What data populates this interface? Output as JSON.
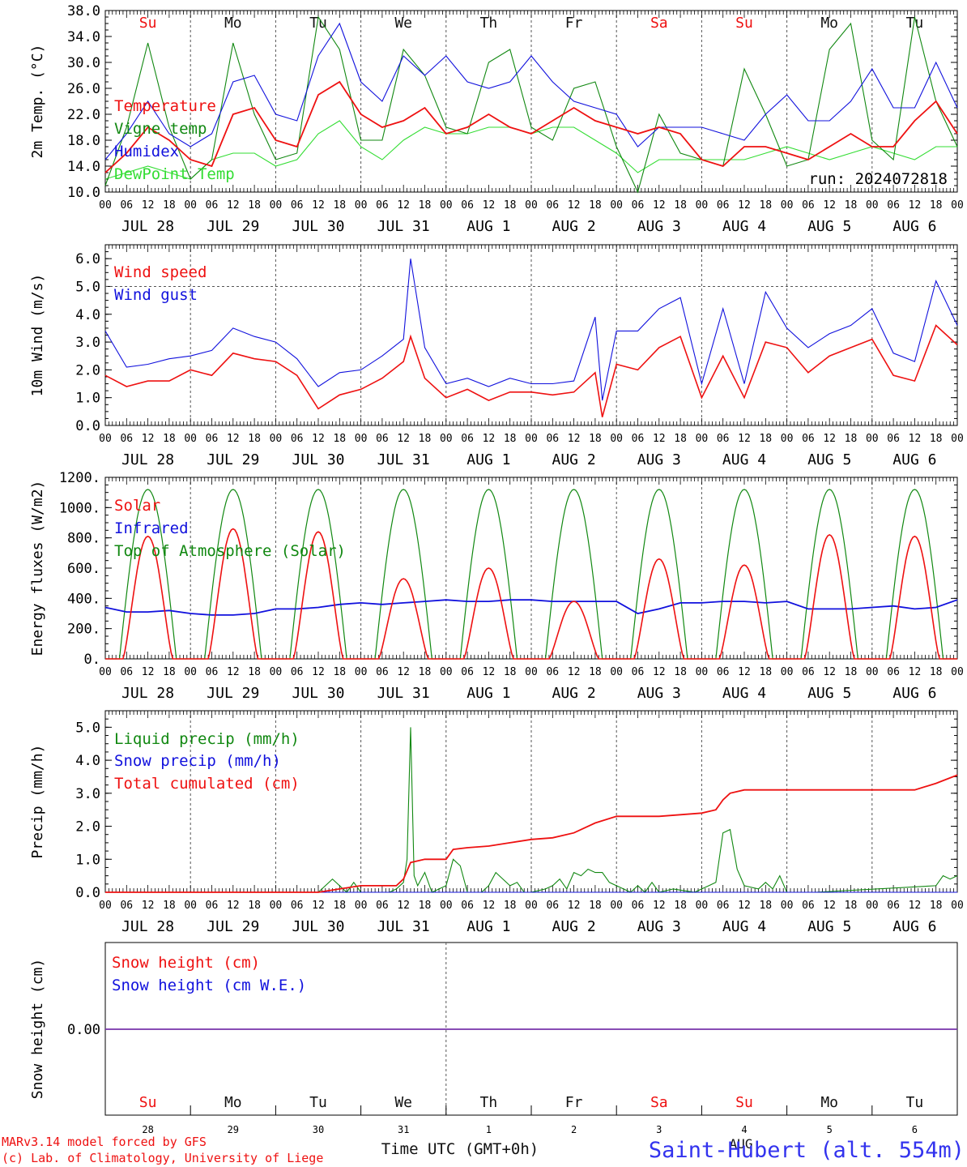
{
  "footer": {
    "credit1": "MARv3.14 model forced by GFS",
    "credit2": "(c) Lab. of Climatology, University of Liege",
    "xlabel": "Time UTC (GMT+0h)",
    "station": "Saint-Hubert (alt. 554m)",
    "month": "AUG"
  },
  "colors": {
    "red": "#ee1111",
    "green": "#118811",
    "blue": "#1111dd",
    "lightgreen": "#33dd33",
    "purple": "#7733aa",
    "weekend": "#ee1111",
    "weekday": "#111111"
  },
  "day_labels": [
    "JUL 28",
    "JUL 29",
    "JUL 30",
    "JUL 31",
    "AUG  1",
    "AUG  2",
    "AUG  3",
    "AUG  4",
    "AUG  5",
    "AUG  6"
  ],
  "hour_labels": [
    "00",
    "06",
    "12",
    "18"
  ],
  "weekdays": [
    "Su",
    "Mo",
    "Tu",
    "We",
    "Th",
    "Fr",
    "Sa",
    "Su",
    "Mo",
    "Tu"
  ],
  "weekend_flags": [
    true,
    false,
    false,
    false,
    false,
    false,
    true,
    true,
    false,
    false
  ],
  "bottom_day_numbers": [
    "28",
    "29",
    "30",
    "31",
    "1",
    "2",
    "3",
    "4",
    "5",
    "6"
  ],
  "chart_data": [
    {
      "type": "line",
      "ylabel": "2m Temp. (°C)",
      "ylim": [
        10,
        38
      ],
      "yticks": [
        10.0,
        14.0,
        18.0,
        22.0,
        26.0,
        30.0,
        34.0,
        38.0
      ],
      "ytick_labels": [
        "10.0",
        "14.0",
        "18.0",
        "22.0",
        "26.0",
        "30.0",
        "34.0",
        "38.0"
      ],
      "run_label": "run: 2024072818",
      "x_unit": "hours since JUL 28 00 UTC",
      "xlim": [
        0,
        240
      ],
      "series": [
        {
          "name": "Temperature",
          "color": "#ee1111",
          "x": [
            0,
            6,
            12,
            18,
            24,
            30,
            36,
            42,
            48,
            54,
            60,
            66,
            72,
            78,
            84,
            90,
            96,
            102,
            108,
            114,
            120,
            126,
            132,
            138,
            144,
            150,
            156,
            162,
            168,
            174,
            180,
            186,
            192,
            198,
            204,
            210,
            216,
            222,
            228,
            234,
            240
          ],
          "y": [
            13,
            16,
            20,
            18,
            15,
            14,
            22,
            23,
            18,
            17,
            25,
            27,
            22,
            20,
            21,
            23,
            19,
            20,
            22,
            20,
            19,
            21,
            23,
            21,
            20,
            19,
            20,
            19,
            15,
            14,
            17,
            17,
            16,
            15,
            17,
            19,
            17,
            17,
            21,
            24,
            19
          ]
        },
        {
          "name": "Vigne temp",
          "color": "#118811",
          "x": [
            0,
            6,
            12,
            18,
            24,
            30,
            36,
            42,
            48,
            54,
            60,
            66,
            72,
            78,
            84,
            90,
            96,
            102,
            108,
            114,
            120,
            126,
            132,
            138,
            144,
            150,
            156,
            162,
            168,
            174,
            180,
            186,
            192,
            198,
            204,
            210,
            216,
            222,
            228,
            234,
            240
          ],
          "y": [
            11,
            20,
            33,
            20,
            12,
            15,
            33,
            22,
            15,
            16,
            37,
            32,
            18,
            18,
            32,
            28,
            20,
            19,
            30,
            32,
            20,
            18,
            26,
            27,
            17,
            10,
            22,
            16,
            15,
            14,
            29,
            22,
            14,
            15,
            32,
            36,
            18,
            15,
            37,
            24,
            17
          ]
        },
        {
          "name": "Humidex",
          "color": "#1111dd",
          "x": [
            0,
            6,
            12,
            18,
            24,
            30,
            36,
            42,
            48,
            54,
            60,
            66,
            72,
            78,
            84,
            90,
            96,
            102,
            108,
            114,
            120,
            126,
            132,
            138,
            144,
            150,
            156,
            162,
            168,
            174,
            180,
            186,
            192,
            198,
            204,
            210,
            216,
            222,
            228,
            234,
            240
          ],
          "y": [
            15,
            19,
            24,
            19,
            17,
            19,
            27,
            28,
            22,
            21,
            31,
            36,
            27,
            24,
            31,
            28,
            31,
            27,
            26,
            27,
            31,
            27,
            24,
            23,
            22,
            17,
            20,
            20,
            20,
            19,
            18,
            22,
            25,
            21,
            21,
            24,
            29,
            23,
            23,
            30,
            23
          ]
        },
        {
          "name": "DewPoint Temp",
          "color": "#33dd33",
          "x": [
            0,
            6,
            12,
            18,
            24,
            30,
            36,
            42,
            48,
            54,
            60,
            66,
            72,
            78,
            84,
            90,
            96,
            102,
            108,
            114,
            120,
            126,
            132,
            138,
            144,
            150,
            156,
            162,
            168,
            174,
            180,
            186,
            192,
            198,
            204,
            210,
            216,
            222,
            228,
            234,
            240
          ],
          "y": [
            12,
            13,
            14,
            13,
            12,
            15,
            16,
            16,
            14,
            15,
            19,
            21,
            17,
            15,
            18,
            20,
            19,
            19,
            20,
            20,
            19,
            20,
            20,
            18,
            16,
            13,
            15,
            15,
            15,
            15,
            15,
            16,
            17,
            16,
            15,
            16,
            17,
            16,
            15,
            17,
            17
          ]
        }
      ]
    },
    {
      "type": "line",
      "ylabel": "10m Wind (m/s)",
      "ylim": [
        0,
        6.5
      ],
      "yticks": [
        0,
        1,
        2,
        3,
        4,
        5,
        6
      ],
      "ytick_labels": [
        "0.0",
        "1.0",
        "2.0",
        "3.0",
        "4.0",
        "5.0",
        "6.0"
      ],
      "reference_line": 5.0,
      "xlim": [
        0,
        240
      ],
      "series": [
        {
          "name": "Wind speed",
          "color": "#ee1111",
          "x": [
            0,
            6,
            12,
            18,
            24,
            30,
            36,
            42,
            48,
            54,
            60,
            66,
            72,
            78,
            84,
            86,
            90,
            96,
            102,
            108,
            114,
            120,
            126,
            132,
            138,
            140,
            144,
            150,
            156,
            162,
            168,
            174,
            180,
            186,
            192,
            198,
            204,
            210,
            216,
            222,
            228,
            234,
            240
          ],
          "y": [
            1.8,
            1.4,
            1.6,
            1.6,
            2.0,
            1.8,
            2.6,
            2.4,
            2.3,
            1.8,
            0.6,
            1.1,
            1.3,
            1.7,
            2.3,
            3.2,
            1.7,
            1.0,
            1.3,
            0.9,
            1.2,
            1.2,
            1.1,
            1.2,
            1.9,
            0.3,
            2.2,
            2.0,
            2.8,
            3.2,
            1.0,
            2.5,
            1.0,
            3.0,
            2.8,
            1.9,
            2.5,
            2.8,
            3.1,
            1.8,
            1.6,
            3.6,
            2.9
          ]
        },
        {
          "name": "Wind gust",
          "color": "#1111dd",
          "x": [
            0,
            6,
            12,
            18,
            24,
            30,
            36,
            42,
            48,
            54,
            60,
            66,
            72,
            78,
            84,
            86,
            90,
            96,
            102,
            108,
            114,
            120,
            126,
            132,
            138,
            140,
            144,
            150,
            156,
            162,
            168,
            174,
            180,
            186,
            192,
            198,
            204,
            210,
            216,
            222,
            228,
            234,
            240
          ],
          "y": [
            3.4,
            2.1,
            2.2,
            2.4,
            2.5,
            2.7,
            3.5,
            3.2,
            3.0,
            2.4,
            1.4,
            1.9,
            2.0,
            2.5,
            3.1,
            6.0,
            2.8,
            1.5,
            1.7,
            1.4,
            1.7,
            1.5,
            1.5,
            1.6,
            3.9,
            0.9,
            3.4,
            3.4,
            4.2,
            4.6,
            1.5,
            4.2,
            1.5,
            4.8,
            3.5,
            2.8,
            3.3,
            3.6,
            4.2,
            2.6,
            2.3,
            5.2,
            3.6
          ]
        }
      ]
    },
    {
      "type": "line",
      "ylabel": "Energy fluxes (W/m2)",
      "ylim": [
        0,
        1200
      ],
      "yticks": [
        0,
        200,
        400,
        600,
        800,
        1000,
        1200
      ],
      "ytick_labels": [
        "0.",
        "200.",
        "400.",
        "600.",
        "800.",
        "1000.",
        "1200."
      ],
      "xlim": [
        0,
        240
      ],
      "toa_peak": 1120,
      "solar_peaks": [
        810,
        860,
        840,
        530,
        600,
        380,
        660,
        620,
        820,
        810
      ],
      "series": [
        {
          "name": "Solar",
          "color": "#ee1111"
        },
        {
          "name": "Infrared",
          "color": "#1111dd",
          "x": [
            0,
            6,
            12,
            18,
            24,
            30,
            36,
            42,
            48,
            54,
            60,
            66,
            72,
            78,
            84,
            90,
            96,
            102,
            108,
            114,
            120,
            126,
            132,
            138,
            144,
            150,
            156,
            162,
            168,
            174,
            180,
            186,
            192,
            198,
            204,
            210,
            216,
            222,
            228,
            234,
            240
          ],
          "y": [
            340,
            310,
            310,
            320,
            300,
            290,
            290,
            300,
            330,
            330,
            340,
            360,
            370,
            360,
            370,
            380,
            390,
            380,
            380,
            390,
            390,
            380,
            380,
            380,
            380,
            300,
            330,
            370,
            370,
            380,
            380,
            370,
            380,
            330,
            330,
            330,
            340,
            350,
            330,
            340,
            390
          ]
        },
        {
          "name": "Top of Atmosphere (Solar)",
          "color": "#118811"
        }
      ]
    },
    {
      "type": "line",
      "ylabel": "Precip (mm/h)",
      "ylim": [
        0,
        5.5
      ],
      "yticks": [
        0,
        1,
        2,
        3,
        4,
        5
      ],
      "ytick_labels": [
        "0.0",
        "1.0",
        "2.0",
        "3.0",
        "4.0",
        "5.0"
      ],
      "xlim": [
        0,
        240
      ],
      "series": [
        {
          "name": "Liquid precip (mm/h)",
          "color": "#118811",
          "x": [
            0,
            60,
            62,
            64,
            66,
            68,
            70,
            72,
            78,
            80,
            82,
            84,
            85,
            86,
            87,
            88,
            90,
            92,
            96,
            98,
            100,
            102,
            106,
            108,
            110,
            114,
            116,
            118,
            120,
            124,
            126,
            128,
            130,
            132,
            134,
            136,
            138,
            140,
            142,
            148,
            150,
            152,
            154,
            156,
            160,
            166,
            168,
            170,
            172,
            174,
            176,
            178,
            180,
            184,
            186,
            188,
            190,
            192,
            196,
            200,
            234,
            236,
            238,
            240
          ],
          "y": [
            0,
            0,
            0.2,
            0.4,
            0.2,
            0.0,
            0.3,
            0,
            0,
            0,
            0.1,
            0.3,
            1.0,
            5.0,
            0.5,
            0.2,
            0.6,
            0,
            0.2,
            1.0,
            0.8,
            0,
            0,
            0.2,
            0.6,
            0.2,
            0.3,
            0.0,
            0,
            0.1,
            0.2,
            0.4,
            0.1,
            0.6,
            0.5,
            0.7,
            0.6,
            0.6,
            0.3,
            0,
            0.2,
            0,
            0.3,
            0,
            0.1,
            0,
            0.1,
            0.2,
            0.3,
            1.8,
            1.9,
            0.7,
            0.2,
            0.1,
            0.3,
            0.1,
            0.5,
            0,
            0,
            0,
            0.2,
            0.5,
            0.4,
            0.5
          ]
        },
        {
          "name": "Snow precip (mm/h)",
          "color": "#1111dd",
          "x": [
            0,
            240
          ],
          "y": [
            0,
            0
          ]
        },
        {
          "name": "Total cumulated (cm)",
          "color": "#ee1111",
          "x": [
            0,
            60,
            66,
            72,
            78,
            82,
            84,
            86,
            90,
            92,
            96,
            98,
            102,
            108,
            114,
            120,
            126,
            132,
            138,
            144,
            150,
            156,
            162,
            168,
            172,
            174,
            176,
            180,
            186,
            192,
            200,
            210,
            220,
            228,
            234,
            240
          ],
          "y": [
            0,
            0,
            0.1,
            0.2,
            0.2,
            0.2,
            0.4,
            0.9,
            1.0,
            1.0,
            1.0,
            1.3,
            1.35,
            1.4,
            1.5,
            1.6,
            1.65,
            1.8,
            2.1,
            2.3,
            2.3,
            2.3,
            2.35,
            2.4,
            2.5,
            2.8,
            3.0,
            3.1,
            3.1,
            3.1,
            3.1,
            3.1,
            3.1,
            3.1,
            3.3,
            3.55
          ]
        }
      ]
    },
    {
      "type": "line",
      "ylabel": "Snow height (cm)",
      "ytick_labels": [
        "0.00"
      ],
      "xlim": [
        0,
        240
      ],
      "series": [
        {
          "name": "Snow height (cm)",
          "color": "#ee1111",
          "x": [
            0,
            240
          ],
          "y": [
            0,
            0
          ]
        },
        {
          "name": "Snow height (cm W.E.)",
          "color": "#1111dd",
          "x": [
            0,
            240
          ],
          "y": [
            0,
            0
          ]
        }
      ]
    }
  ]
}
